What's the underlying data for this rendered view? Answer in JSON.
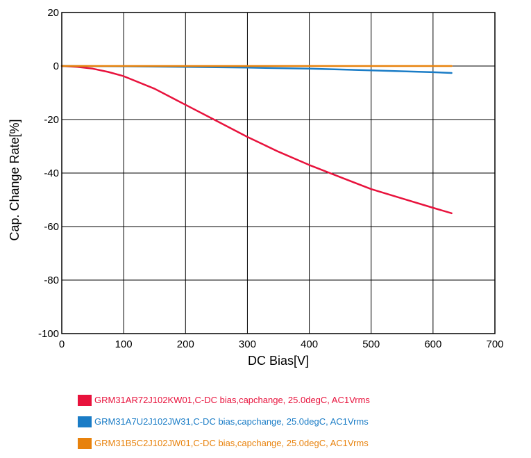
{
  "chart_data": {
    "type": "line",
    "title": "",
    "xlabel": "DC Bias[V]",
    "ylabel": "Cap. Change Rate[%]",
    "xlim": [
      0,
      700
    ],
    "ylim": [
      -100,
      20
    ],
    "x_ticks": [
      0,
      100,
      200,
      300,
      400,
      500,
      600,
      700
    ],
    "y_ticks": [
      20,
      0,
      -20,
      -40,
      -60,
      -80,
      -100
    ],
    "grid": true,
    "legend_position": "bottom",
    "series": [
      {
        "name": "GRM31AR72J102KW01,C-DC bias,capchange, 25.0degC, AC1Vrms",
        "color": "#e8123c",
        "x": [
          0,
          25,
          50,
          75,
          100,
          150,
          200,
          250,
          300,
          350,
          400,
          450,
          500,
          550,
          600,
          630
        ],
        "y": [
          0,
          -0.3,
          -1,
          -2.2,
          -3.8,
          -8.5,
          -14.5,
          -20.5,
          -26.5,
          -32,
          -37,
          -41.5,
          -46,
          -49.5,
          -53,
          -55
        ]
      },
      {
        "name": "GRM31A7U2J102JW31,C-DC bias,capchange, 25.0degC, AC1Vrms",
        "color": "#1a7cc6",
        "x": [
          0,
          100,
          200,
          300,
          400,
          500,
          600,
          630
        ],
        "y": [
          0,
          -0.1,
          -0.3,
          -0.6,
          -1.0,
          -1.6,
          -2.3,
          -2.6
        ]
      },
      {
        "name": "GRM31B5C2J102JW01,C-DC bias,capchange, 25.0degC, AC1Vrms",
        "color": "#e8820c",
        "x": [
          0,
          100,
          200,
          300,
          400,
          500,
          600,
          630
        ],
        "y": [
          0,
          0,
          0,
          0,
          0,
          0,
          0,
          0
        ]
      }
    ]
  }
}
